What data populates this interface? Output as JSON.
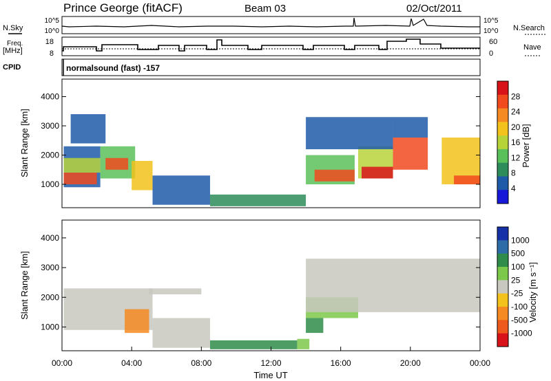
{
  "header": {
    "station": "Prince George (fitACF)",
    "beam": "Beam 03",
    "date": "02/Oct/2011"
  },
  "left_labels": {
    "nsky": "N.Sky",
    "freq": "Freq.",
    "freq_unit": "[MHz]",
    "cpid": "CPID"
  },
  "right_labels": {
    "nsearch": "N.Search",
    "nave": "Nave"
  },
  "nsky_ticks": [
    "10^5",
    "10^0"
  ],
  "nsearch_ticks": [
    "10^5",
    "10^0"
  ],
  "freq_ticks": [
    "18",
    "8"
  ],
  "nave_ticks": [
    "60",
    "0"
  ],
  "cpid_text": "normalsound (fast) -157",
  "power_colorbar": {
    "title": "Power [dB]",
    "labels": [
      "28",
      "24",
      "20",
      "16",
      "12",
      "8",
      "4"
    ],
    "colors": [
      "#d8141a",
      "#f04a1e",
      "#f68a22",
      "#f3c21c",
      "#b7d33a",
      "#5ac15a",
      "#2e8c5a",
      "#1f5aa8",
      "#1818d8"
    ]
  },
  "velocity_colorbar": {
    "title": "Velocity [m s⁻¹]",
    "labels": [
      "1000",
      "500",
      "100",
      "25",
      "-25",
      "-100",
      "-500",
      "-1000"
    ],
    "colors": [
      "#1630a8",
      "#2e6ca8",
      "#2f8c4a",
      "#7cc84a",
      "#c8c8c0",
      "#f3c21c",
      "#f68a22",
      "#ee5a1e",
      "#d8141a"
    ]
  },
  "chart_data": [
    {
      "type": "heatmap",
      "name": "Power",
      "ylabel": "Slant Range [km]",
      "yticks": [
        "1000",
        "2000",
        "3000",
        "4000"
      ],
      "ylim": [
        200,
        4600
      ],
      "xlim": [
        0,
        24
      ],
      "bands": [
        {
          "t0": 0.1,
          "t1": 2.2,
          "r0": 900,
          "r1": 2300,
          "c": "#1f5aa8"
        },
        {
          "t0": 0.1,
          "t1": 2.0,
          "r0": 1000,
          "r1": 1400,
          "c": "#f04a1e"
        },
        {
          "t0": 0.1,
          "t1": 2.2,
          "r0": 1400,
          "r1": 1900,
          "c": "#b7d33a"
        },
        {
          "t0": 2.2,
          "t1": 4.2,
          "r0": 1200,
          "r1": 2300,
          "c": "#5ac15a"
        },
        {
          "t0": 2.5,
          "t1": 3.8,
          "r0": 1500,
          "r1": 1900,
          "c": "#f04a1e"
        },
        {
          "t0": 4.0,
          "t1": 5.2,
          "r0": 800,
          "r1": 1800,
          "c": "#f3c21c"
        },
        {
          "t0": 5.2,
          "t1": 8.5,
          "r0": 300,
          "r1": 1300,
          "c": "#1f5aa8"
        },
        {
          "t0": 8.5,
          "t1": 14.0,
          "r0": 250,
          "r1": 650,
          "c": "#2e8c5a"
        },
        {
          "t0": 14.0,
          "t1": 16.8,
          "r0": 1000,
          "r1": 2000,
          "c": "#5ac15a"
        },
        {
          "t0": 14.5,
          "t1": 16.8,
          "r0": 1100,
          "r1": 1500,
          "c": "#f04a1e"
        },
        {
          "t0": 17.0,
          "t1": 19.0,
          "r0": 1200,
          "r1": 2300,
          "c": "#b7d33a"
        },
        {
          "t0": 17.2,
          "t1": 19.0,
          "r0": 1200,
          "r1": 1600,
          "c": "#d8141a"
        },
        {
          "t0": 19.0,
          "t1": 21.0,
          "r0": 1500,
          "r1": 2600,
          "c": "#f04a1e"
        },
        {
          "t0": 19.0,
          "t1": 21.0,
          "r0": 2600,
          "r1": 3300,
          "c": "#1f5aa8"
        },
        {
          "t0": 21.8,
          "t1": 24.0,
          "r0": 1000,
          "r1": 2600,
          "c": "#f3c21c"
        },
        {
          "t0": 22.5,
          "t1": 24.0,
          "r0": 1000,
          "r1": 1300,
          "c": "#f04a1e"
        },
        {
          "t0": 14.0,
          "t1": 19.0,
          "r0": 2200,
          "r1": 3300,
          "c": "#1f5aa8"
        },
        {
          "t0": 0.5,
          "t1": 2.5,
          "r0": 2400,
          "r1": 3400,
          "c": "#1f5aa8"
        }
      ]
    },
    {
      "type": "heatmap",
      "name": "Velocity",
      "ylabel": "Slant Range [km]",
      "yticks": [
        "1000",
        "2000",
        "3000",
        "4000"
      ],
      "ylim": [
        200,
        4600
      ],
      "xlim": [
        0,
        24
      ],
      "xlabel": "Time UT",
      "xticks": [
        "00:00",
        "04:00",
        "08:00",
        "12:00",
        "16:00",
        "20:00",
        "00:00"
      ],
      "bands": [
        {
          "t0": 0.1,
          "t1": 5.2,
          "r0": 900,
          "r1": 2300,
          "c": "#c8c8c0"
        },
        {
          "t0": 3.6,
          "t1": 5.0,
          "r0": 800,
          "r1": 1600,
          "c": "#f68a22"
        },
        {
          "t0": 5.2,
          "t1": 8.5,
          "r0": 300,
          "r1": 1300,
          "c": "#c8c8c0"
        },
        {
          "t0": 8.5,
          "t1": 13.5,
          "r0": 250,
          "r1": 550,
          "c": "#2f8c4a"
        },
        {
          "t0": 13.5,
          "t1": 14.2,
          "r0": 250,
          "r1": 600,
          "c": "#7cc84a"
        },
        {
          "t0": 14.0,
          "t1": 15.0,
          "r0": 800,
          "r1": 1300,
          "c": "#2f8c4a"
        },
        {
          "t0": 14.0,
          "t1": 17.0,
          "r0": 1300,
          "r1": 2000,
          "c": "#7cc84a"
        },
        {
          "t0": 14.0,
          "t1": 24.0,
          "r0": 1500,
          "r1": 3300,
          "c": "#c8c8c0"
        },
        {
          "t0": 5.0,
          "t1": 8.0,
          "r0": 2100,
          "r1": 2300,
          "c": "#c8c8c0"
        }
      ]
    }
  ]
}
